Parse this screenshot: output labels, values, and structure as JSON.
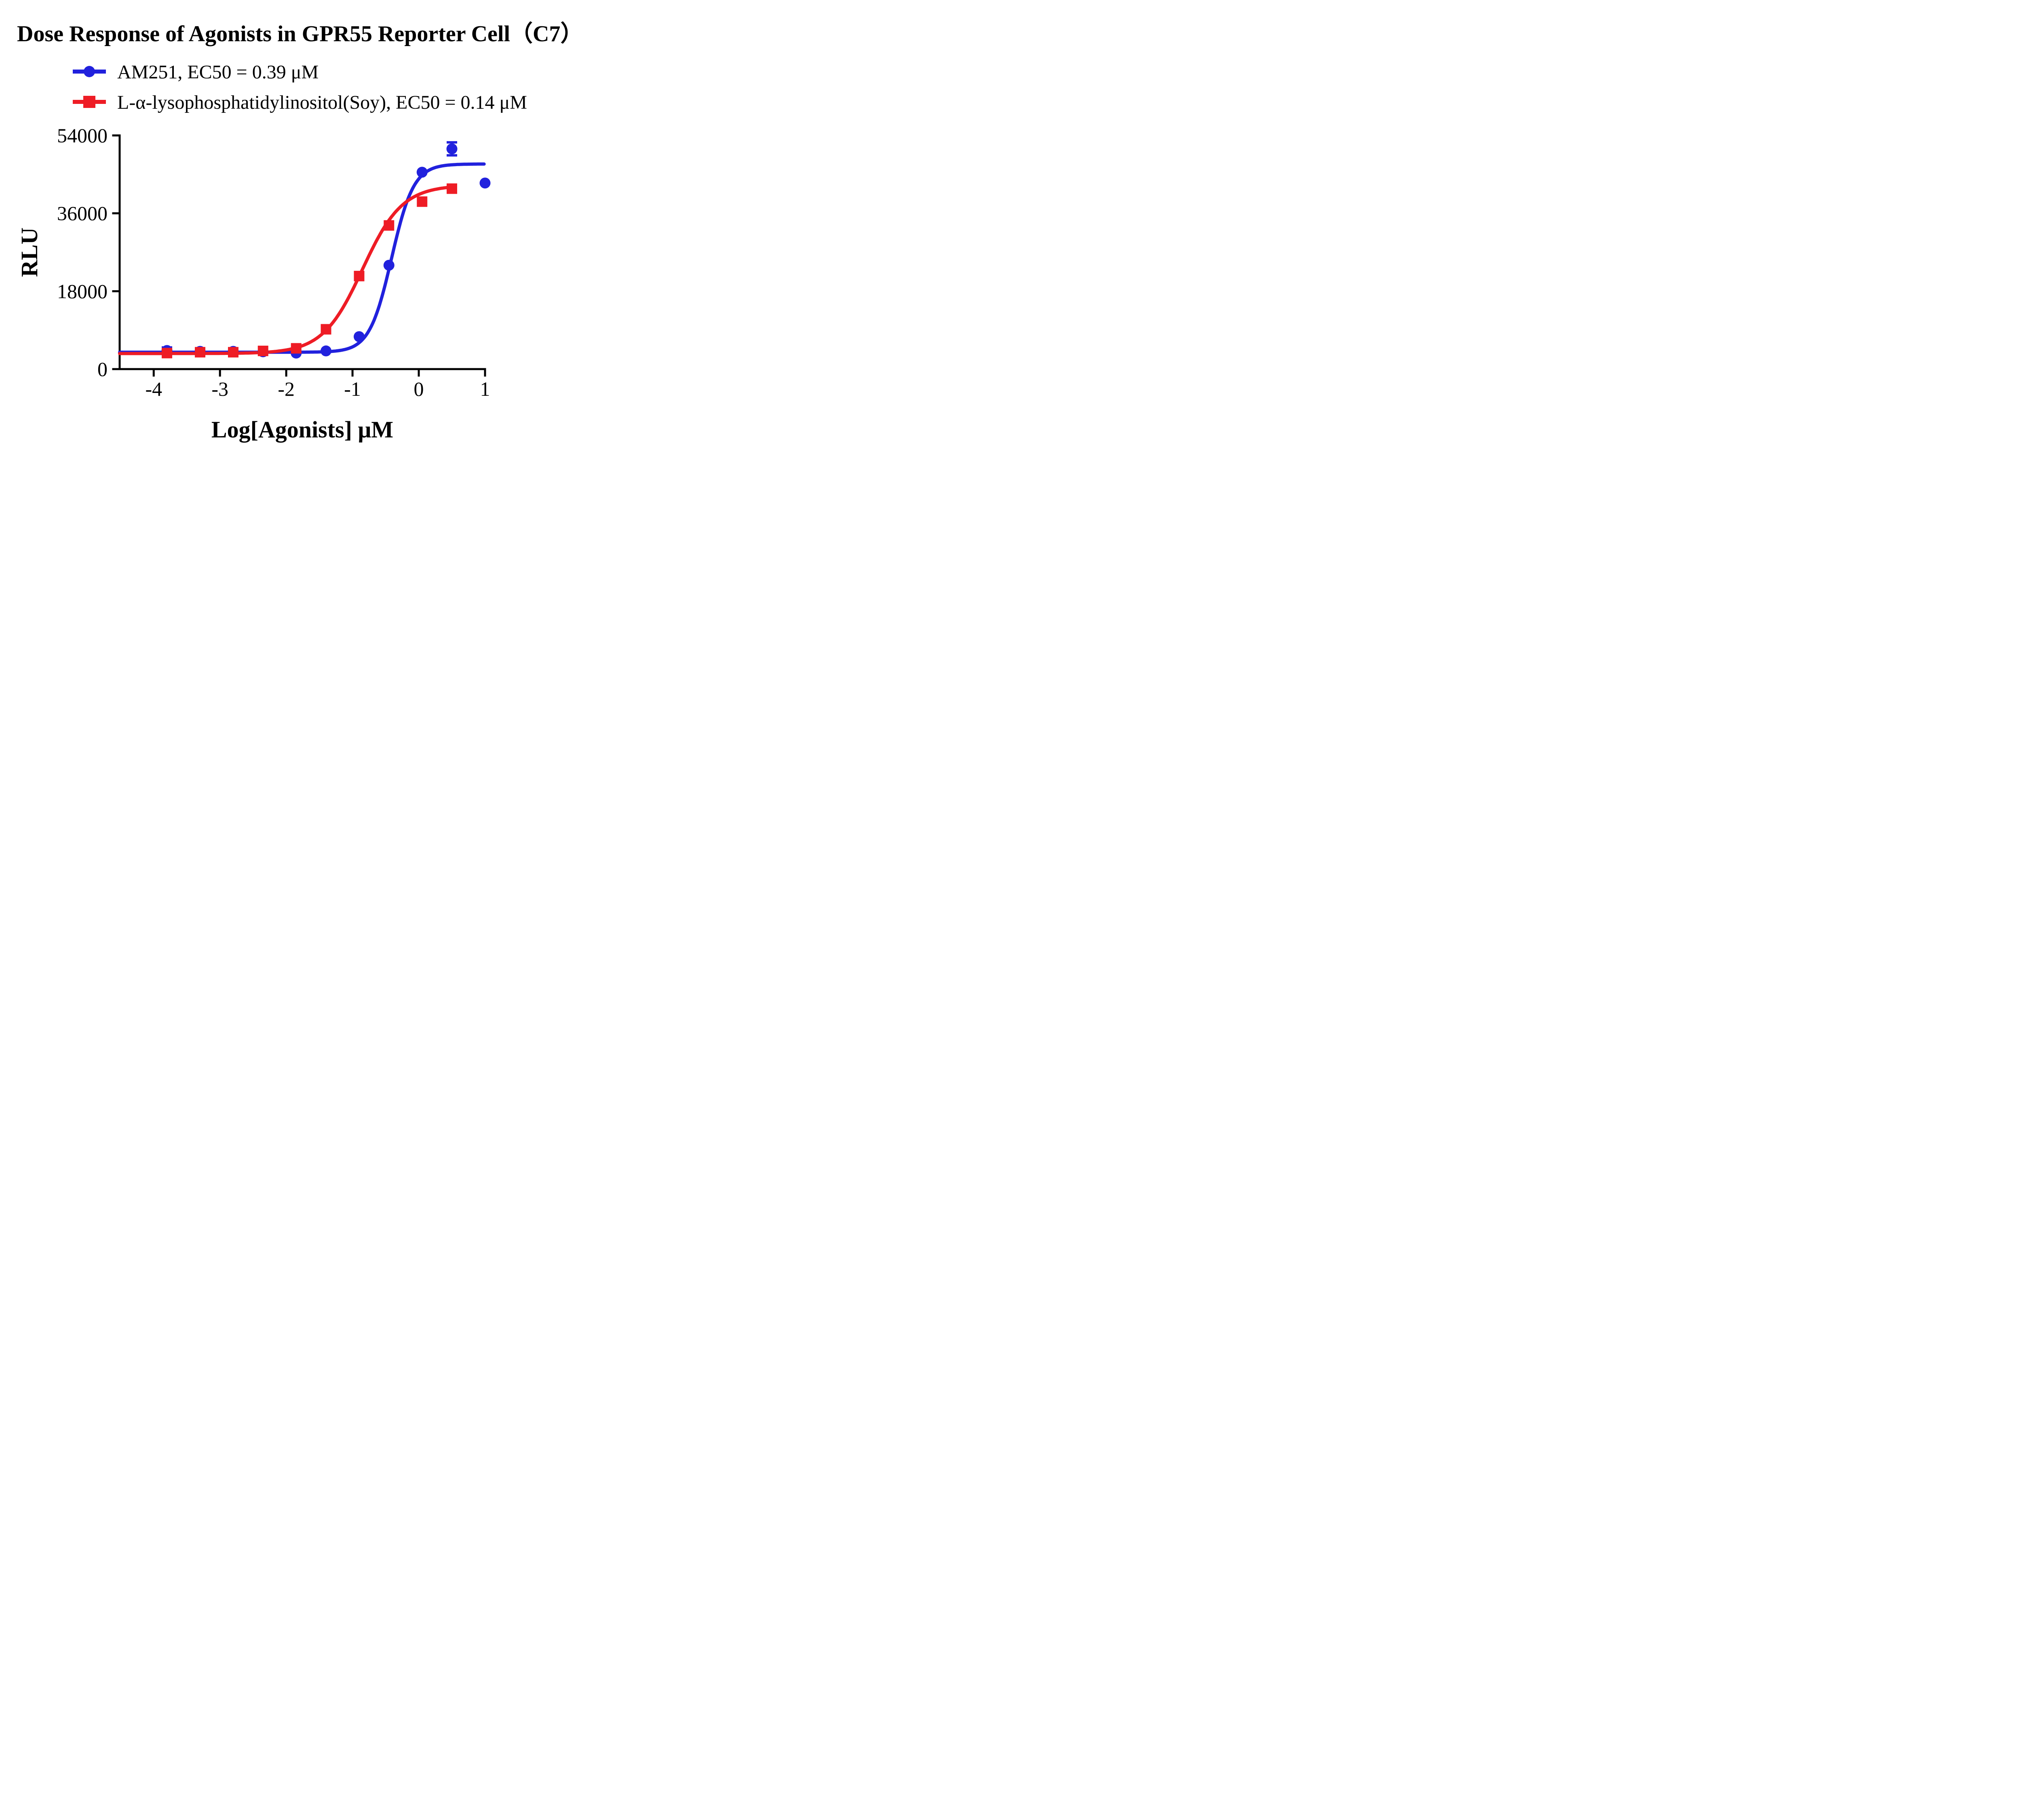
{
  "title": "Dose Response of Agonists in GPR55 Reporter Cell（C7）",
  "chart_data": {
    "type": "scatter",
    "title": "Dose Response of Agonists in GPR55 Reporter Cell（C7）",
    "xlabel": "Log[Agonists] μM",
    "ylabel": "RLU",
    "xlim": [
      -4.514,
      1.0
    ],
    "ylim": [
      0,
      54000
    ],
    "xticks": [
      -4,
      -3,
      -2,
      -1,
      0,
      1
    ],
    "xtick_labels": [
      "-4",
      "-3",
      "-2",
      "-1",
      "0",
      "1"
    ],
    "yticks": [
      0,
      18000,
      36000,
      54000
    ],
    "ytick_labels": [
      "0",
      "18000",
      "36000",
      "54000"
    ],
    "grid": false,
    "legend_position": "top-left",
    "series": [
      {
        "id": "am251",
        "name": "AM251",
        "label": "AM251, EC50 = 0.39 μM",
        "ec50_uM": 0.39,
        "color": "#2121dd",
        "marker": "circle",
        "x": [
          -3.8,
          -3.3,
          -2.8,
          -2.35,
          -1.85,
          -1.4,
          -0.9,
          -0.45,
          0.05,
          0.5,
          1.0
        ],
        "y": [
          4300,
          4100,
          4100,
          4000,
          3700,
          4200,
          7500,
          24000,
          45500,
          50900,
          43000
        ],
        "yerr": [
          700,
          0,
          0,
          0,
          0,
          0,
          0,
          0,
          0,
          1500,
          0
        ],
        "fit": {
          "model": "4PL",
          "bottom": 3900,
          "top": 47400,
          "logEC50": -0.41,
          "hill": 2.6
        },
        "fit_range": [
          -4.514,
          1.0
        ]
      },
      {
        "id": "lpi",
        "name": "L-α-lysophosphatidylinositol(Soy)",
        "label": "L-α-lysophosphatidylinositol(Soy), EC50 = 0.14 μM",
        "ec50_uM": 0.14,
        "color": "#ee1c25",
        "marker": "square",
        "x": [
          -3.8,
          -3.3,
          -2.8,
          -2.35,
          -1.85,
          -1.4,
          -0.9,
          -0.45,
          0.05,
          0.5
        ],
        "y": [
          3700,
          3900,
          3900,
          4200,
          4800,
          9200,
          21500,
          33200,
          38700,
          41700
        ],
        "yerr": [
          0,
          700,
          600,
          0,
          0,
          0,
          0,
          0,
          0,
          0
        ],
        "fit": {
          "model": "4PL",
          "bottom": 3600,
          "top": 42500,
          "logEC50": -0.85,
          "hill": 1.45
        },
        "fit_range": [
          -4.514,
          0.56
        ]
      }
    ]
  }
}
